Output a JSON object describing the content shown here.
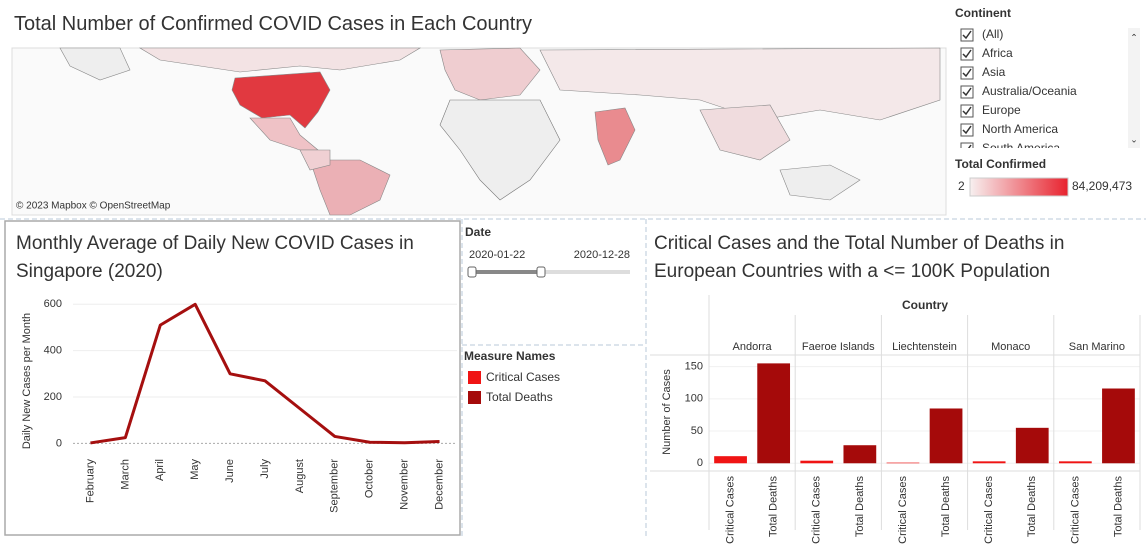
{
  "map": {
    "title": "Total Number of Confirmed COVID Cases in Each Country",
    "attribution": "© 2023 Mapbox © OpenStreetMap"
  },
  "continent_filter": {
    "title": "Continent",
    "items": [
      "(All)",
      "Africa",
      "Asia",
      "Australia/Oceania",
      "Europe",
      "North America",
      "South America"
    ]
  },
  "color_legend": {
    "title": "Total Confirmed",
    "min_label": "2",
    "max_label": "84,209,473"
  },
  "date_filter": {
    "title": "Date",
    "start": "2020-01-22",
    "end": "2020-12-28"
  },
  "chart_data": [
    {
      "type": "line",
      "title": "Monthly Average of Daily New COVID Cases in Singapore (2020)",
      "y_label": "Daily New Cases per Month",
      "categories": [
        "February",
        "March",
        "April",
        "May",
        "June",
        "July",
        "August",
        "September",
        "October",
        "November",
        "December"
      ],
      "series": [
        {
          "name": "Daily New Cases",
          "color": "#a50f0f",
          "values": [
            2,
            25,
            510,
            600,
            300,
            270,
            150,
            30,
            5,
            3,
            8
          ]
        }
      ],
      "ylim": [
        -50,
        640
      ],
      "yticks": [
        0,
        200,
        400,
        600
      ],
      "grid": true
    },
    {
      "type": "bar",
      "title": "Critical Cases and the Total Number of Deaths in European Countries with a <= 100K Population",
      "y_label": "Number of Cases",
      "column_header": "Country",
      "legend_title": "Measure Names",
      "categories": [
        "Andorra",
        "Faeroe Islands",
        "Liechtenstein",
        "Monaco",
        "San Marino"
      ],
      "series": [
        {
          "name": "Critical Cases",
          "color": "#f01414",
          "values": [
            11,
            4,
            1,
            3,
            3
          ]
        },
        {
          "name": "Total Deaths",
          "color": "#a50a0a",
          "values": [
            155,
            28,
            85,
            55,
            116
          ]
        }
      ],
      "ylim": [
        -12,
        168
      ],
      "yticks": [
        0,
        50,
        100,
        150
      ],
      "grid": true
    }
  ]
}
